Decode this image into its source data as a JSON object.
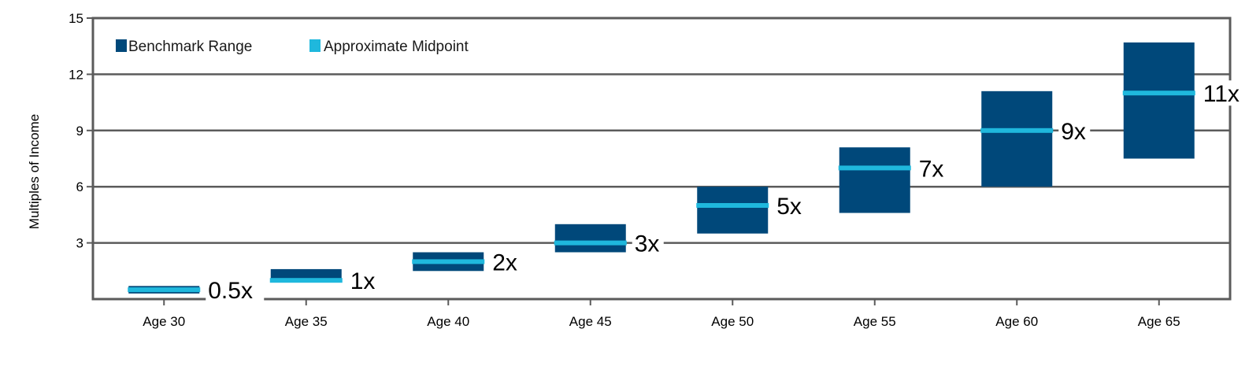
{
  "chart_data": {
    "type": "bar",
    "ylabel": "Multiples of Income",
    "xlabel": "",
    "categories": [
      "Age 30",
      "Age 35",
      "Age 40",
      "Age 45",
      "Age 50",
      "Age 55",
      "Age 60",
      "Age 65"
    ],
    "ylim": [
      0,
      15
    ],
    "yticks": [
      3,
      6,
      9,
      12,
      15
    ],
    "grid": true,
    "legend_position": "top-left",
    "series": [
      {
        "name": "Benchmark Range",
        "kind": "floating-range",
        "low": [
          0.3,
          1.0,
          1.5,
          2.5,
          3.5,
          4.6,
          6.0,
          7.5
        ],
        "high": [
          0.7,
          1.6,
          2.5,
          4.0,
          6.0,
          8.1,
          11.1,
          13.7
        ]
      },
      {
        "name": "Approximate Midpoint",
        "kind": "marker",
        "values": [
          0.5,
          1,
          2,
          3,
          5,
          7,
          9,
          11
        ]
      }
    ],
    "data_labels": [
      "0.5x",
      "1x",
      "2x",
      "3x",
      "5x",
      "7x",
      "9x",
      "11x"
    ],
    "colors": {
      "range": "#00487a",
      "midpoint": "#1fb8dd",
      "grid": "#5b5b5b",
      "axis": "#5b5b5b"
    }
  }
}
